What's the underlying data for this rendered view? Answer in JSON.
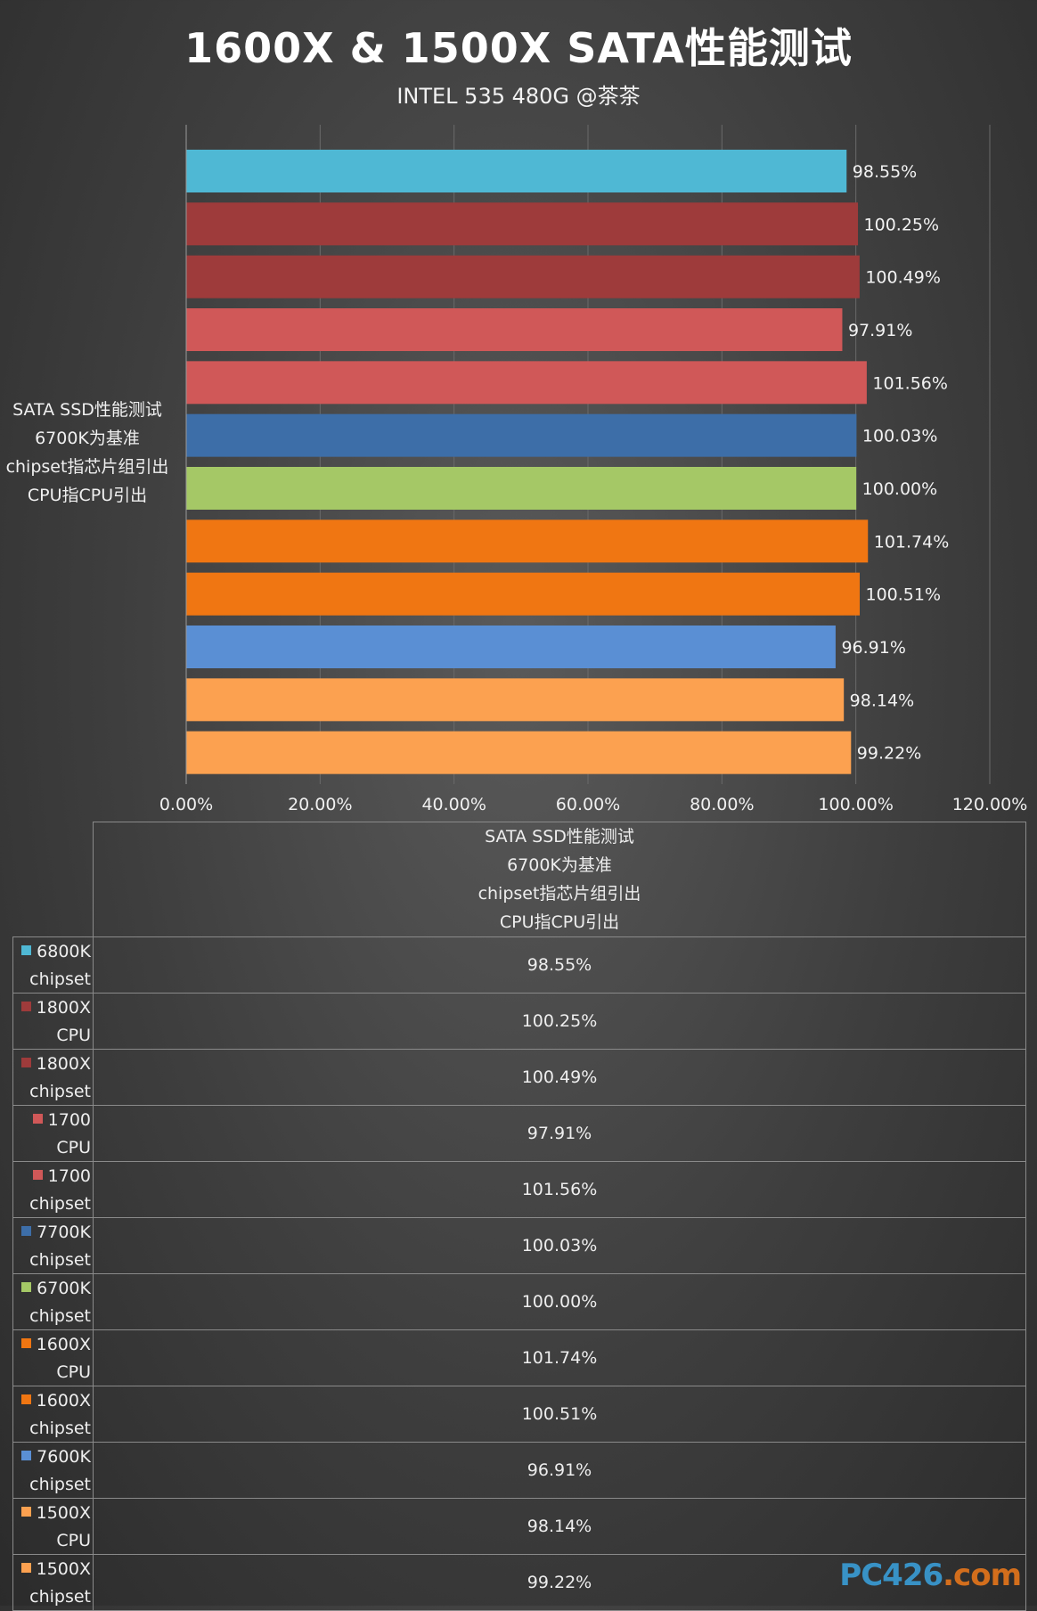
{
  "chart_data": {
    "type": "bar",
    "orientation": "horizontal",
    "title": "1600X & 1500X SATA性能测试",
    "subtitle": "INTEL 535 480G @茶茶",
    "category_label_lines": [
      "SATA SSD性能测试",
      "6700K为基准",
      "chipset指芯片组引出",
      "CPU指CPU引出"
    ],
    "xlim": [
      0,
      120
    ],
    "x_ticks": [
      "0.00%",
      "20.00%",
      "40.00%",
      "60.00%",
      "80.00%",
      "100.00%",
      "120.00%"
    ],
    "x_tick_values": [
      0,
      20,
      40,
      60,
      80,
      100,
      120
    ],
    "grid": true,
    "series": [
      {
        "name_lines": [
          "6800K",
          "chipset"
        ],
        "value": 98.55,
        "label": "98.55%",
        "color": "#4fb8d4"
      },
      {
        "name_lines": [
          "1800X",
          "CPU"
        ],
        "value": 100.25,
        "label": "100.25%",
        "color": "#9e3b3b"
      },
      {
        "name_lines": [
          "1800X",
          "chipset"
        ],
        "value": 100.49,
        "label": "100.49%",
        "color": "#9e3b3b"
      },
      {
        "name_lines": [
          "1700",
          "CPU"
        ],
        "value": 97.91,
        "label": "97.91%",
        "color": "#d05858"
      },
      {
        "name_lines": [
          "1700",
          "chipset"
        ],
        "value": 101.56,
        "label": "101.56%",
        "color": "#d05858"
      },
      {
        "name_lines": [
          "7700K",
          "chipset"
        ],
        "value": 100.03,
        "label": "100.03%",
        "color": "#3d6ea8"
      },
      {
        "name_lines": [
          "6700K",
          "chipset"
        ],
        "value": 100.0,
        "label": "100.00%",
        "color": "#a5c866"
      },
      {
        "name_lines": [
          "1600X",
          "CPU"
        ],
        "value": 101.74,
        "label": "101.74%",
        "color": "#f07612"
      },
      {
        "name_lines": [
          "1600X",
          "chipset"
        ],
        "value": 100.51,
        "label": "100.51%",
        "color": "#f07612"
      },
      {
        "name_lines": [
          "7600K",
          "chipset"
        ],
        "value": 96.91,
        "label": "96.91%",
        "color": "#5a8fd4"
      },
      {
        "name_lines": [
          "1500X",
          "CPU"
        ],
        "value": 98.14,
        "label": "98.14%",
        "color": "#fca150"
      },
      {
        "name_lines": [
          "1500X",
          "chipset"
        ],
        "value": 99.22,
        "label": "99.22%",
        "color": "#fca150"
      }
    ]
  },
  "watermark": {
    "text_main": "PC426",
    "text_dot": ".com"
  }
}
